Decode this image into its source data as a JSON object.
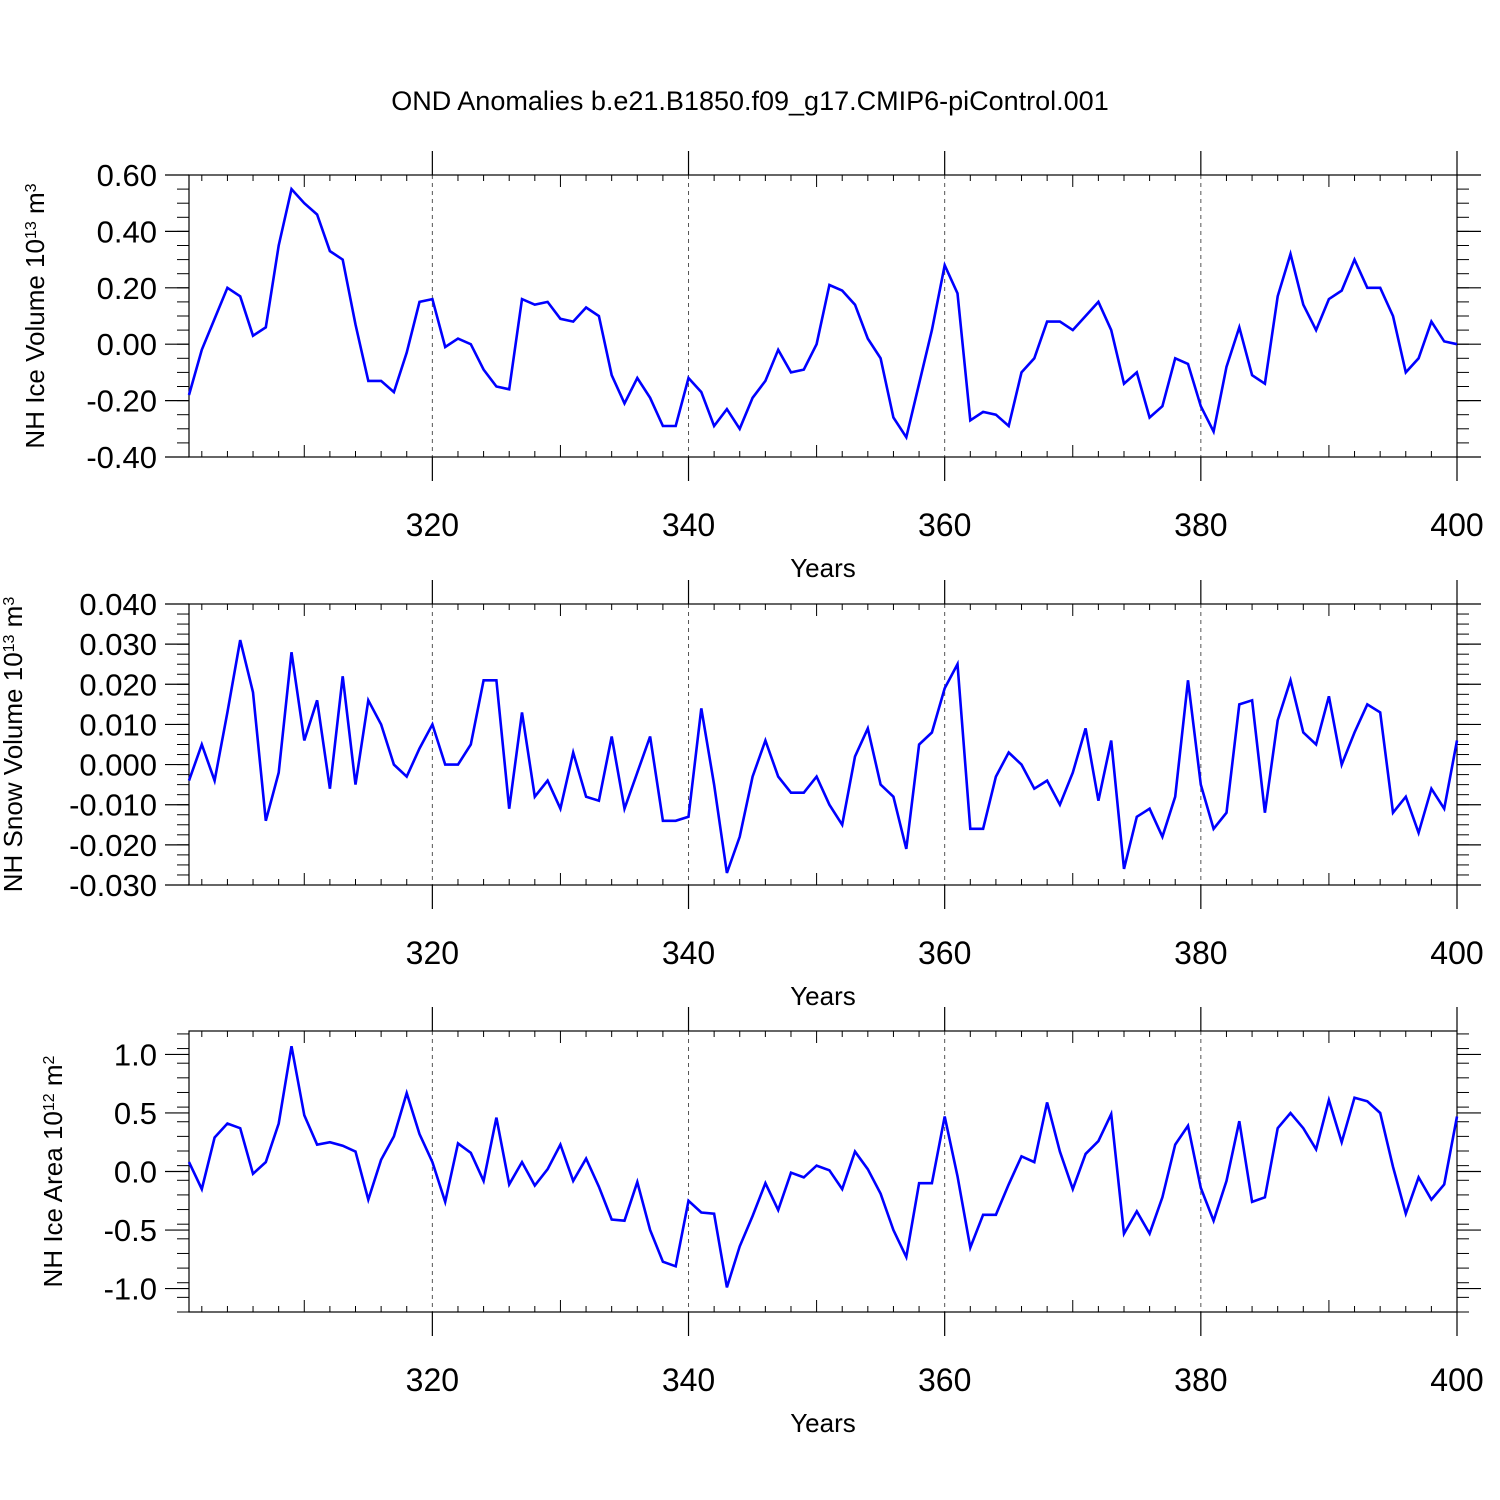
{
  "figure": {
    "title": "OND Anomalies b.e21.B1850.f09_g17.CMIP6-piControl.001"
  },
  "chart_data": [
    {
      "type": "line",
      "ylabel": "NH Ice Volume 10",
      "ylabel_exp": "13",
      "ylabel_unit": " m",
      "ylabel_unit_exp": "3",
      "xlabel": "Years",
      "xlim": [
        301,
        400
      ],
      "ylim": [
        -0.4,
        0.6
      ],
      "xticks": [
        320,
        340,
        360,
        380,
        400
      ],
      "xtick_labels": [
        "320",
        "340",
        "360",
        "380",
        "400"
      ],
      "yticks": [
        -0.4,
        -0.2,
        0.0,
        0.2,
        0.4,
        0.6
      ],
      "ytick_labels": [
        "-0.40",
        "-0.20",
        "0.00",
        "0.20",
        "0.40",
        "0.60"
      ],
      "gridlines_x": [
        320,
        340,
        360,
        380
      ],
      "series": [
        {
          "color": "#0000ff",
          "x_start": 301,
          "values": [
            -0.18,
            -0.02,
            0.09,
            0.2,
            0.17,
            0.03,
            0.06,
            0.35,
            0.55,
            0.5,
            0.46,
            0.33,
            0.3,
            0.07,
            -0.13,
            -0.13,
            -0.17,
            -0.03,
            0.15,
            0.16,
            -0.01,
            0.02,
            0.0,
            -0.09,
            -0.15,
            -0.16,
            0.16,
            0.14,
            0.15,
            0.09,
            0.08,
            0.13,
            0.1,
            -0.11,
            -0.21,
            -0.12,
            -0.19,
            -0.29,
            -0.29,
            -0.12,
            -0.17,
            -0.29,
            -0.23,
            -0.3,
            -0.19,
            -0.13,
            -0.02,
            -0.1,
            -0.09,
            0.0,
            0.21,
            0.19,
            0.14,
            0.02,
            -0.05,
            -0.26,
            -0.33,
            -0.14,
            0.05,
            0.28,
            0.18,
            -0.27,
            -0.24,
            -0.25,
            -0.29,
            -0.1,
            -0.05,
            0.08,
            0.08,
            0.05,
            0.1,
            0.15,
            0.05,
            -0.14,
            -0.1,
            -0.26,
            -0.22,
            -0.05,
            -0.07,
            -0.22,
            -0.31,
            -0.08,
            0.06,
            -0.11,
            -0.14,
            0.17,
            0.32,
            0.14,
            0.05,
            0.16,
            0.19,
            0.3,
            0.2,
            0.2,
            0.1,
            -0.1,
            -0.05,
            0.08,
            0.01,
            0.0
          ]
        }
      ]
    },
    {
      "type": "line",
      "ylabel": "NH Snow Volume 10",
      "ylabel_exp": "13",
      "ylabel_unit": " m",
      "ylabel_unit_exp": "3",
      "xlabel": "Years",
      "xlim": [
        301,
        400
      ],
      "ylim": [
        -0.03,
        0.04
      ],
      "xticks": [
        320,
        340,
        360,
        380,
        400
      ],
      "xtick_labels": [
        "320",
        "340",
        "360",
        "380",
        "400"
      ],
      "yticks": [
        -0.03,
        -0.02,
        -0.01,
        0.0,
        0.01,
        0.02,
        0.03,
        0.04
      ],
      "ytick_labels": [
        "-0.030",
        "-0.020",
        "-0.010",
        "0.000",
        "0.010",
        "0.020",
        "0.030",
        "0.040"
      ],
      "gridlines_x": [
        320,
        340,
        360,
        380
      ],
      "series": [
        {
          "color": "#0000ff",
          "x_start": 301,
          "values": [
            -0.004,
            0.005,
            -0.004,
            0.013,
            0.031,
            0.018,
            -0.014,
            -0.002,
            0.028,
            0.006,
            0.016,
            -0.006,
            0.022,
            -0.005,
            0.016,
            0.01,
            0.0,
            -0.003,
            0.004,
            0.01,
            0.0,
            0.0,
            0.005,
            0.021,
            0.021,
            -0.011,
            0.013,
            -0.008,
            -0.004,
            -0.011,
            0.003,
            -0.008,
            -0.009,
            0.007,
            -0.011,
            -0.002,
            0.007,
            -0.014,
            -0.014,
            -0.013,
            0.014,
            -0.005,
            -0.027,
            -0.018,
            -0.003,
            0.006,
            -0.003,
            -0.007,
            -0.007,
            -0.003,
            -0.01,
            -0.015,
            0.002,
            0.009,
            -0.005,
            -0.008,
            -0.021,
            0.005,
            0.008,
            0.019,
            0.025,
            -0.016,
            -0.016,
            -0.003,
            0.003,
            0.0,
            -0.006,
            -0.004,
            -0.01,
            -0.002,
            0.009,
            -0.009,
            0.006,
            -0.026,
            -0.013,
            -0.011,
            -0.018,
            -0.008,
            0.021,
            -0.005,
            -0.016,
            -0.012,
            0.015,
            0.016,
            -0.012,
            0.011,
            0.021,
            0.008,
            0.005,
            0.017,
            0.0,
            0.008,
            0.015,
            0.013,
            -0.012,
            -0.008,
            -0.017,
            -0.006,
            -0.011,
            0.006
          ]
        }
      ]
    },
    {
      "type": "line",
      "ylabel": "NH Ice Area 10",
      "ylabel_exp": "12",
      "ylabel_unit": " m",
      "ylabel_unit_exp": "2",
      "xlabel": "Years",
      "xlim": [
        301,
        400
      ],
      "ylim": [
        -1.2,
        1.2
      ],
      "xticks": [
        320,
        340,
        360,
        380,
        400
      ],
      "xtick_labels": [
        "320",
        "340",
        "360",
        "380",
        "400"
      ],
      "yticks": [
        -1.0,
        -0.5,
        0.0,
        0.5,
        1.0
      ],
      "ytick_labels": [
        "-1.0",
        "-0.5",
        "0.0",
        "0.5",
        "1.0"
      ],
      "gridlines_x": [
        320,
        340,
        360,
        380
      ],
      "series": [
        {
          "color": "#0000ff",
          "x_start": 301,
          "values": [
            0.08,
            -0.15,
            0.29,
            0.41,
            0.37,
            -0.02,
            0.08,
            0.41,
            1.07,
            0.48,
            0.23,
            0.25,
            0.22,
            0.17,
            -0.24,
            0.1,
            0.3,
            0.67,
            0.32,
            0.08,
            -0.26,
            0.24,
            0.16,
            -0.08,
            0.46,
            -0.11,
            0.08,
            -0.12,
            0.02,
            0.23,
            -0.08,
            0.11,
            -0.13,
            -0.41,
            -0.42,
            -0.09,
            -0.5,
            -0.77,
            -0.81,
            -0.25,
            -0.35,
            -0.36,
            -0.99,
            -0.64,
            -0.38,
            -0.1,
            -0.33,
            -0.01,
            -0.05,
            0.05,
            0.01,
            -0.15,
            0.17,
            0.02,
            -0.19,
            -0.5,
            -0.73,
            -0.1,
            -0.1,
            0.47,
            -0.04,
            -0.65,
            -0.37,
            -0.37,
            -0.11,
            0.13,
            0.08,
            0.59,
            0.17,
            -0.15,
            0.15,
            0.26,
            0.49,
            -0.53,
            -0.34,
            -0.53,
            -0.22,
            0.23,
            0.39,
            -0.14,
            -0.42,
            -0.08,
            0.43,
            -0.26,
            -0.22,
            0.37,
            0.5,
            0.37,
            0.19,
            0.61,
            0.25,
            0.63,
            0.6,
            0.5,
            0.04,
            -0.36,
            -0.05,
            -0.24,
            -0.11,
            0.47
          ]
        }
      ]
    }
  ]
}
